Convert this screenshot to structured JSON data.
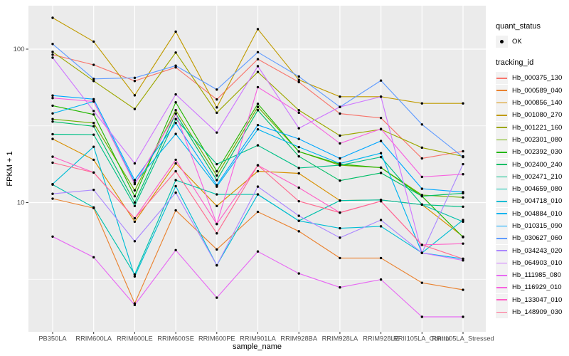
{
  "colors": {
    "panel_bg": "#EBEBEB",
    "grid": "#FFFFFF",
    "tick": "#333333",
    "tick_label": "#4D4D4D",
    "axis_title": "#000000",
    "legend_key_bg": "#F2F2F2",
    "point": "#000000"
  },
  "legend": {
    "quant_status": {
      "title": "quant_status",
      "items": [
        {
          "label": "OK",
          "marker": "point"
        }
      ]
    },
    "tracking": {
      "title": "tracking_id"
    }
  },
  "chart_data": {
    "type": "line",
    "title": "",
    "xlabel": "sample_name",
    "ylabel": "FPKM + 1",
    "y_scale": "log10",
    "ylim": [
      1.44,
      195
    ],
    "y_major_breaks": [
      10,
      100
    ],
    "y_minor_breaks": [
      3.162,
      31.62,
      316.2
    ],
    "y_tick_labels": [
      "10",
      "100"
    ],
    "grid": "on",
    "legend_position": "right",
    "categories": [
      "PB350LA",
      "RRIM600LA",
      "RRIM600LE",
      "RRIM600SE",
      "RRIM600PE",
      "RRIM901LA",
      "RRIM928BA",
      "RRIM928LA",
      "RRIM928LE",
      "RRII105LA_Control",
      "RRII105LA_Stressed"
    ],
    "series": [
      {
        "name": "Hb_000375_130",
        "color": "#F8766D",
        "values": [
          92,
          79,
          62,
          76,
          47,
          86,
          61,
          38,
          35.6,
          19.4,
          21.6
        ]
      },
      {
        "name": "Hb_000589_040",
        "color": "#EA8331",
        "values": [
          10.6,
          9.2,
          2.2,
          8.9,
          4.95,
          8.7,
          6.5,
          4.35,
          4.35,
          3.0,
          2.7
        ]
      },
      {
        "name": "Hb_000856_140",
        "color": "#D89000",
        "values": [
          26,
          19,
          7.5,
          18,
          9.5,
          16,
          15.5,
          10.3,
          10.4,
          9.7,
          6.0
        ]
      },
      {
        "name": "Hb_001080_270",
        "color": "#C09B00",
        "values": [
          160,
          112,
          50,
          130,
          41.7,
          135,
          63,
          49,
          49,
          44.3,
          44.3
        ]
      },
      {
        "name": "Hb_001221_160",
        "color": "#9DA700",
        "values": [
          96,
          62,
          40.7,
          95,
          38.5,
          71,
          40,
          27.3,
          30,
          22.8,
          20
        ]
      },
      {
        "name": "Hb_002301_080",
        "color": "#6FB000",
        "values": [
          35,
          33,
          12,
          40,
          15,
          42,
          21.5,
          17.5,
          16.9,
          11.2,
          10.8
        ]
      },
      {
        "name": "Hb_002392_030",
        "color": "#24B700",
        "values": [
          42.8,
          37.5,
          11,
          45,
          16,
          44,
          21.5,
          17.8,
          16.9,
          11,
          5.95
        ]
      },
      {
        "name": "Hb_002400_240",
        "color": "#00BE67",
        "values": [
          33.7,
          31.4,
          10,
          38,
          14,
          40,
          20,
          13.9,
          15.6,
          11,
          11.5
        ]
      },
      {
        "name": "Hb_002471_210",
        "color": "#00C087",
        "values": [
          27.9,
          27.7,
          9.5,
          35,
          17.8,
          23.6,
          16.8,
          17.5,
          19.8,
          9.7,
          9.4
        ]
      },
      {
        "name": "Hb_004659_080",
        "color": "#00C1AB",
        "values": [
          13.1,
          9.3,
          3.4,
          14,
          11.3,
          11.3,
          7.6,
          10.3,
          10.4,
          9.7,
          7.5
        ]
      },
      {
        "name": "Hb_004718_010",
        "color": "#00BDD4",
        "values": [
          13.2,
          23.1,
          3.3,
          12.8,
          3.9,
          11.3,
          7.6,
          6.8,
          7.0,
          4.7,
          7.7
        ]
      },
      {
        "name": "Hb_004884_010",
        "color": "#00B4EF",
        "values": [
          38.1,
          45.6,
          13.5,
          28,
          12.7,
          30,
          23,
          18,
          21,
          4.7,
          4.3
        ]
      },
      {
        "name": "Hb_010315_090",
        "color": "#00A7FF",
        "values": [
          49.8,
          47.2,
          14,
          33,
          13,
          32,
          26,
          19.4,
          25.2,
          12.3,
          11.7
        ]
      },
      {
        "name": "Hb_030627_060",
        "color": "#619CFF",
        "values": [
          108,
          64,
          65,
          78,
          54.5,
          95.5,
          66.3,
          42,
          62.4,
          32.3,
          19.8
        ]
      },
      {
        "name": "Hb_034243_020",
        "color": "#AC88FF",
        "values": [
          11.4,
          12.1,
          5.6,
          11.6,
          3.9,
          12.7,
          8.2,
          5.9,
          7.7,
          4.7,
          17.8
        ]
      },
      {
        "name": "Hb_064903_010",
        "color": "#CF78FF",
        "values": [
          88,
          39.5,
          18,
          50.7,
          28.6,
          77.4,
          30.5,
          42,
          49,
          4.7,
          4.2
        ]
      },
      {
        "name": "Hb_111985_080",
        "color": "#E76BF3",
        "values": [
          6.0,
          4.4,
          2.15,
          4.9,
          2.4,
          4.8,
          3.45,
          2.8,
          3.15,
          1.8,
          1.8
        ]
      },
      {
        "name": "Hb_116929_010",
        "color": "#F763DF",
        "values": [
          48,
          45.6,
          13.2,
          38,
          7.25,
          56.5,
          38.5,
          24.3,
          30.2,
          14.7,
          15.3
        ]
      },
      {
        "name": "Hb_133047_010",
        "color": "#FF61C7",
        "values": [
          19.9,
          15.7,
          7.9,
          19,
          7.25,
          17.5,
          12.5,
          8.6,
          10.2,
          5.3,
          5.4
        ]
      },
      {
        "name": "Hb_148909_030",
        "color": "#FF6C91",
        "values": [
          18.2,
          15.7,
          7.9,
          16,
          6.3,
          17.5,
          10.2,
          8.6,
          10.2,
          5.3,
          4.3
        ]
      }
    ]
  }
}
